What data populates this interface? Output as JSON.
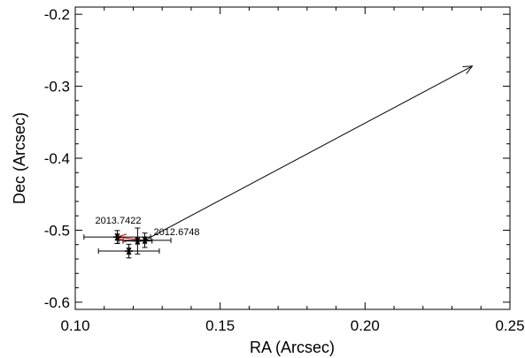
{
  "chart_data": {
    "type": "scatter",
    "title": "",
    "xlabel": "RA (Arcsec)",
    "ylabel": "Dec (Arcsec)",
    "xlim": [
      0.1,
      0.25
    ],
    "ylim": [
      -0.61,
      -0.19
    ],
    "xticks": [
      0.1,
      0.15,
      0.2,
      0.25
    ],
    "xtick_labels": [
      "0.10",
      "0.15",
      "0.20",
      "0.25"
    ],
    "yticks": [
      -0.6,
      -0.5,
      -0.4,
      -0.3,
      -0.2
    ],
    "ytick_labels": [
      "-0.6",
      "-0.5",
      "-0.4",
      "-0.3",
      "-0.2"
    ],
    "grid": false,
    "points": [
      {
        "x": 0.1145,
        "y": -0.5095,
        "xerr": 0.0115,
        "yerr": 0.009
      },
      {
        "x": 0.1215,
        "y": -0.515,
        "xerr": 0.005,
        "yerr": 0.018
      },
      {
        "x": 0.124,
        "y": -0.514,
        "xerr": 0.009,
        "yerr": 0.01
      },
      {
        "x": 0.1185,
        "y": -0.529,
        "xerr": 0.0105,
        "yerr": 0.0095
      }
    ],
    "annotations": [
      {
        "text": "2013.7422",
        "x": 0.1145,
        "y": -0.5095
      },
      {
        "text": "2012.6748",
        "x": 0.124,
        "y": -0.514
      }
    ],
    "arrows": [
      {
        "name": "motion-arrow",
        "from": [
          0.124,
          -0.514
        ],
        "to": [
          0.237,
          -0.272
        ],
        "color": "#000000"
      },
      {
        "name": "red-track",
        "from": [
          0.124,
          -0.514
        ],
        "to": [
          0.1145,
          -0.5095
        ],
        "color": "#cc0000"
      }
    ]
  }
}
